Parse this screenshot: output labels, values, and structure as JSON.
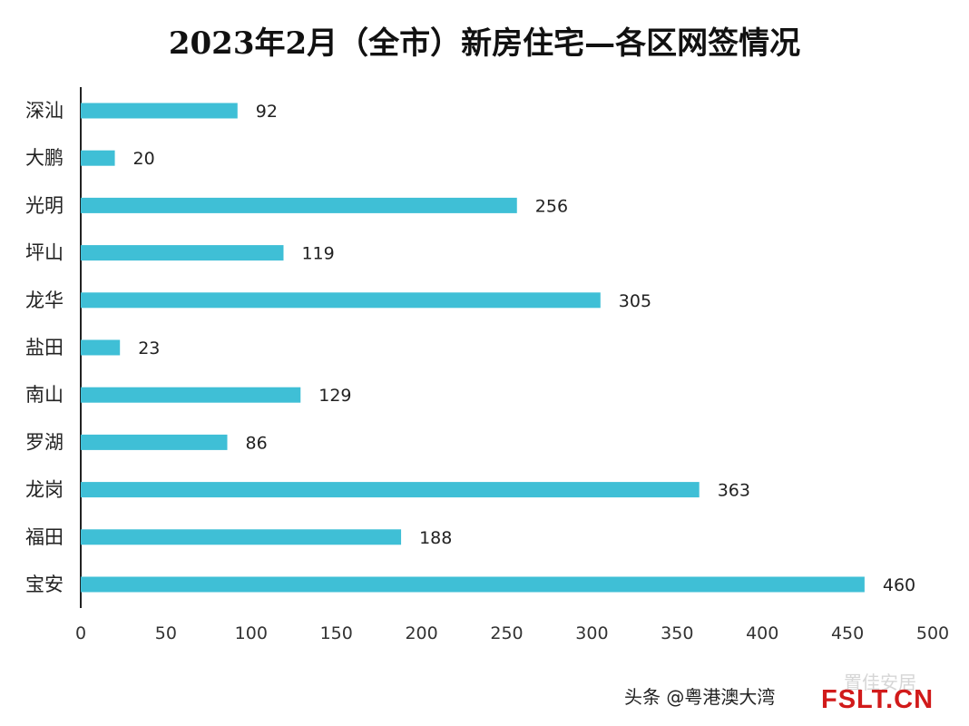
{
  "chart_data": {
    "type": "bar",
    "orientation": "horizontal",
    "title": "2023年2月（全市）新房住宅—各区网签情况",
    "categories": [
      "深汕",
      "大鹏",
      "光明",
      "坪山",
      "龙华",
      "盐田",
      "南山",
      "罗湖",
      "龙岗",
      "福田",
      "宝安"
    ],
    "values": [
      92,
      20,
      256,
      119,
      305,
      23,
      129,
      86,
      363,
      188,
      460
    ],
    "xticks": [
      0,
      50,
      100,
      150,
      200,
      250,
      300,
      350,
      400,
      450,
      500
    ],
    "xlim": [
      0,
      500
    ],
    "bar_color": "#3fbfd6",
    "xlabel": "",
    "ylabel": "",
    "grid": false
  },
  "watermark": {
    "text": "头条 @粤港澳大湾",
    "ghost_text": "置佳安居",
    "logo_text": "FSLT.CN"
  }
}
